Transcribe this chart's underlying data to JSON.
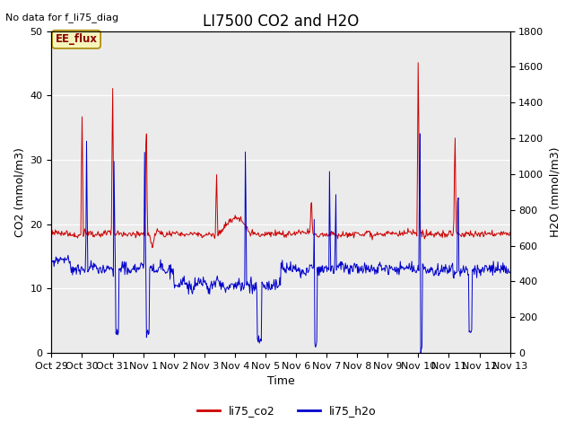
{
  "title": "LI7500 CO2 and H2O",
  "top_left_text": "No data for f_li75_diag",
  "xlabel": "Time",
  "ylabel_left": "CO2 (mmol/m3)",
  "ylabel_right": "H2O (mmol/m3)",
  "ylim_left": [
    0,
    50
  ],
  "ylim_right": [
    0,
    1800
  ],
  "xtick_labels": [
    "Oct 29",
    "Oct 30",
    "Oct 31",
    "Nov 1",
    "Nov 2",
    "Nov 3",
    "Nov 4",
    "Nov 5",
    "Nov 6",
    "Nov 7",
    "Nov 8",
    "Nov 9",
    "Nov 10",
    "Nov 11",
    "Nov 12",
    "Nov 13"
  ],
  "color_co2": "#cc0000",
  "color_h2o": "#0000cc",
  "legend_label_co2": "li75_co2",
  "legend_label_h2o": "li75_h2o",
  "annotation_text": "EE_flux",
  "plot_bg_color": "#ebebeb",
  "grid_color": "#ffffff",
  "title_fontsize": 12,
  "label_fontsize": 9,
  "tick_fontsize": 8
}
